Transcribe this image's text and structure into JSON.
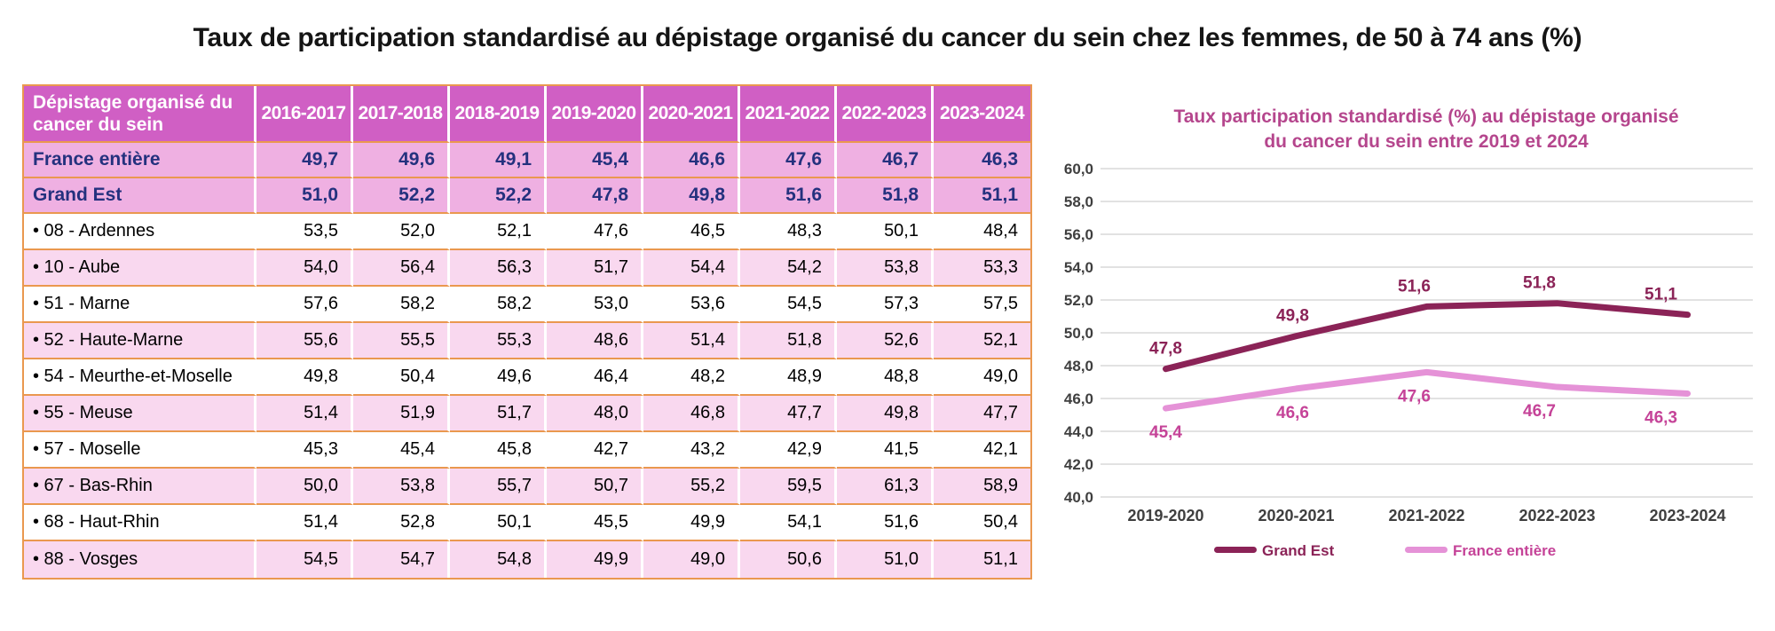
{
  "title": "Taux de participation standardisé au dépistage organisé du cancer du sein chez les femmes, de 50 à 74 ans (%)",
  "colors": {
    "table-header-bg": "#d05fc4",
    "table-bold-row-bg": "#efb0e2",
    "table-alt-row-bg": "#f9d8ef",
    "table-navy-text": "#24317e",
    "table-border-orange": "#ea984f",
    "chart-title": "#b5468d",
    "axis-text": "#3f3f3f",
    "gridline": "#d9d9d9"
  },
  "chart_data": [
    {
      "type": "table",
      "corner_header": "Dépistage organisé du cancer du sein",
      "columns": [
        "2016-2017",
        "2017-2018",
        "2018-2019",
        "2019-2020",
        "2020-2021",
        "2021-2022",
        "2022-2023",
        "2023-2024"
      ],
      "rows": [
        {
          "label": "France entière",
          "style": "bold",
          "values": [
            "49,7",
            "49,6",
            "49,1",
            "45,4",
            "46,6",
            "47,6",
            "46,7",
            "46,3"
          ]
        },
        {
          "label": "Grand Est",
          "style": "bold",
          "values": [
            "51,0",
            "52,2",
            "52,2",
            "47,8",
            "49,8",
            "51,6",
            "51,8",
            "51,1"
          ]
        },
        {
          "label": "• 08 - Ardennes",
          "style": "dept",
          "values": [
            "53,5",
            "52,0",
            "52,1",
            "47,6",
            "46,5",
            "48,3",
            "50,1",
            "48,4"
          ]
        },
        {
          "label": "• 10 - Aube",
          "style": "dept",
          "values": [
            "54,0",
            "56,4",
            "56,3",
            "51,7",
            "54,4",
            "54,2",
            "53,8",
            "53,3"
          ]
        },
        {
          "label": "• 51 - Marne",
          "style": "dept",
          "values": [
            "57,6",
            "58,2",
            "58,2",
            "53,0",
            "53,6",
            "54,5",
            "57,3",
            "57,5"
          ]
        },
        {
          "label": "• 52 - Haute-Marne",
          "style": "dept",
          "values": [
            "55,6",
            "55,5",
            "55,3",
            "48,6",
            "51,4",
            "51,8",
            "52,6",
            "52,1"
          ]
        },
        {
          "label": "• 54 - Meurthe-et-Moselle",
          "style": "dept",
          "values": [
            "49,8",
            "50,4",
            "49,6",
            "46,4",
            "48,2",
            "48,9",
            "48,8",
            "49,0"
          ]
        },
        {
          "label": "• 55 - Meuse",
          "style": "dept",
          "values": [
            "51,4",
            "51,9",
            "51,7",
            "48,0",
            "46,8",
            "47,7",
            "49,8",
            "47,7"
          ]
        },
        {
          "label": "• 57 - Moselle",
          "style": "dept",
          "values": [
            "45,3",
            "45,4",
            "45,8",
            "42,7",
            "43,2",
            "42,9",
            "41,5",
            "42,1"
          ]
        },
        {
          "label": "• 67 - Bas-Rhin",
          "style": "dept",
          "values": [
            "50,0",
            "53,8",
            "55,7",
            "50,7",
            "55,2",
            "59,5",
            "61,3",
            "58,9"
          ]
        },
        {
          "label": "• 68 - Haut-Rhin",
          "style": "dept",
          "values": [
            "51,4",
            "52,8",
            "50,1",
            "45,5",
            "49,9",
            "54,1",
            "51,6",
            "50,4"
          ]
        },
        {
          "label": "• 88 - Vosges",
          "style": "dept",
          "values": [
            "54,5",
            "54,7",
            "54,8",
            "49,9",
            "49,0",
            "50,6",
            "51,0",
            "51,1"
          ]
        }
      ]
    },
    {
      "type": "line",
      "title_lines": [
        "Taux participation standardisé (%) au dépistage organisé",
        "du cancer du sein entre 2019 et 2024"
      ],
      "categories": [
        "2019-2020",
        "2020-2021",
        "2021-2022",
        "2022-2023",
        "2023-2024"
      ],
      "series": [
        {
          "name": "Grand Est",
          "color": "#8b2357",
          "label_color": "#8b2357",
          "label_side": "above",
          "values": [
            47.8,
            49.8,
            51.6,
            51.8,
            51.1
          ],
          "labels": [
            "47,8",
            "49,8",
            "51,6",
            "51,8",
            "51,1"
          ]
        },
        {
          "name": "France entière",
          "color": "#e592d7",
          "label_color": "#c54398",
          "label_side": "below",
          "values": [
            45.4,
            46.6,
            47.6,
            46.7,
            46.3
          ],
          "labels": [
            "45,4",
            "46,6",
            "47,6",
            "46,7",
            "46,3"
          ]
        }
      ],
      "ylim": [
        40,
        60
      ],
      "ytick_step": 2,
      "ytick_labels": [
        "40,0",
        "42,0",
        "44,0",
        "46,0",
        "48,0",
        "50,0",
        "52,0",
        "54,0",
        "56,0",
        "58,0",
        "60,0"
      ],
      "grid": true,
      "legend_position": "bottom"
    }
  ]
}
